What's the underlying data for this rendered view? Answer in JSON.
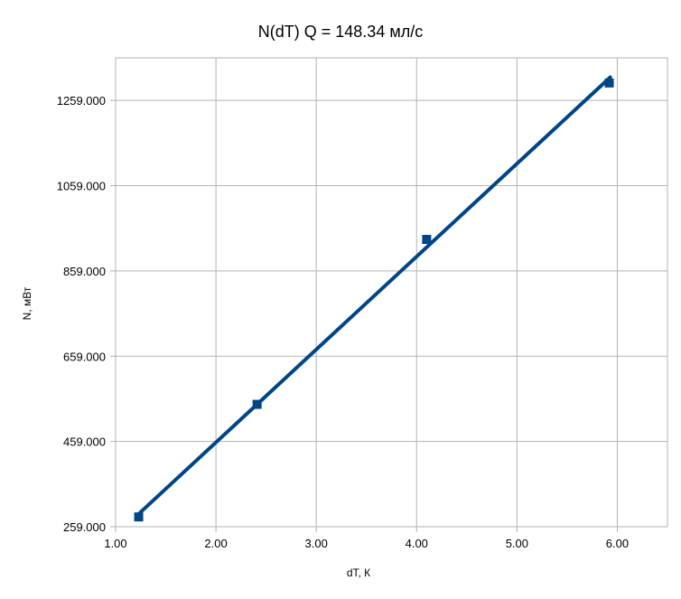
{
  "chart_data": {
    "type": "scatter",
    "title": "N(dT) Q = 148.34 мл/с",
    "xlabel": "dT, К",
    "ylabel": "N, мВт",
    "xlim": [
      1.0,
      6.5
    ],
    "ylim": [
      259,
      1359
    ],
    "xticks": [
      "1.00",
      "2.00",
      "3.00",
      "4.00",
      "5.00",
      "6.00"
    ],
    "yticks": [
      "259.000",
      "459.000",
      "659.000",
      "859.000",
      "1059.000",
      "1259.000"
    ],
    "grid": true,
    "marker": "square",
    "color": "#004586",
    "series": [
      {
        "points": [
          {
            "x": 1.23,
            "y": 282
          },
          {
            "x": 2.41,
            "y": 546
          },
          {
            "x": 4.1,
            "y": 933
          },
          {
            "x": 5.92,
            "y": 1300
          }
        ]
      }
    ],
    "trendline": {
      "type": "linear",
      "x_start": 1.23,
      "x_end": 5.93
    }
  }
}
